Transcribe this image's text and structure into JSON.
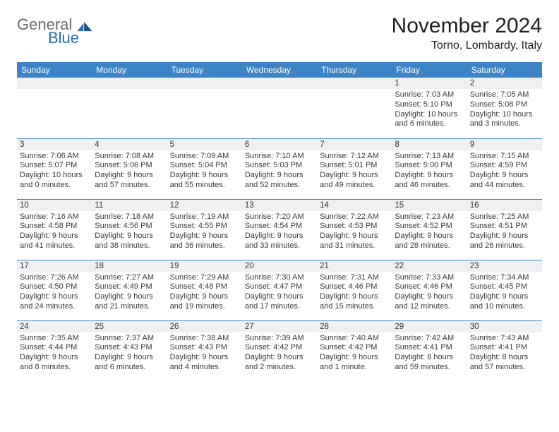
{
  "brand": {
    "general": "General",
    "blue": "Blue"
  },
  "title": "November 2024",
  "location": "Torno, Lombardy, Italy",
  "colors": {
    "header_bg": "#3d84c6",
    "gray_band": "#eef0f2",
    "rule": "#3d84c6",
    "brand_blue": "#2a6fb5",
    "brand_gray": "#6b6b6b"
  },
  "typography": {
    "title_fontsize": 30,
    "location_fontsize": 16,
    "dayhead_fontsize": 12,
    "cell_fontsize": 11
  },
  "days_of_week": [
    "Sunday",
    "Monday",
    "Tuesday",
    "Wednesday",
    "Thursday",
    "Friday",
    "Saturday"
  ],
  "weeks": [
    [
      null,
      null,
      null,
      null,
      null,
      {
        "n": "1",
        "sunrise": "Sunrise: 7:03 AM",
        "sunset": "Sunset: 5:10 PM",
        "d1": "Daylight: 10 hours",
        "d2": "and 6 minutes."
      },
      {
        "n": "2",
        "sunrise": "Sunrise: 7:05 AM",
        "sunset": "Sunset: 5:08 PM",
        "d1": "Daylight: 10 hours",
        "d2": "and 3 minutes."
      }
    ],
    [
      {
        "n": "3",
        "sunrise": "Sunrise: 7:06 AM",
        "sunset": "Sunset: 5:07 PM",
        "d1": "Daylight: 10 hours",
        "d2": "and 0 minutes."
      },
      {
        "n": "4",
        "sunrise": "Sunrise: 7:08 AM",
        "sunset": "Sunset: 5:06 PM",
        "d1": "Daylight: 9 hours",
        "d2": "and 57 minutes."
      },
      {
        "n": "5",
        "sunrise": "Sunrise: 7:09 AM",
        "sunset": "Sunset: 5:04 PM",
        "d1": "Daylight: 9 hours",
        "d2": "and 55 minutes."
      },
      {
        "n": "6",
        "sunrise": "Sunrise: 7:10 AM",
        "sunset": "Sunset: 5:03 PM",
        "d1": "Daylight: 9 hours",
        "d2": "and 52 minutes."
      },
      {
        "n": "7",
        "sunrise": "Sunrise: 7:12 AM",
        "sunset": "Sunset: 5:01 PM",
        "d1": "Daylight: 9 hours",
        "d2": "and 49 minutes."
      },
      {
        "n": "8",
        "sunrise": "Sunrise: 7:13 AM",
        "sunset": "Sunset: 5:00 PM",
        "d1": "Daylight: 9 hours",
        "d2": "and 46 minutes."
      },
      {
        "n": "9",
        "sunrise": "Sunrise: 7:15 AM",
        "sunset": "Sunset: 4:59 PM",
        "d1": "Daylight: 9 hours",
        "d2": "and 44 minutes."
      }
    ],
    [
      {
        "n": "10",
        "sunrise": "Sunrise: 7:16 AM",
        "sunset": "Sunset: 4:58 PM",
        "d1": "Daylight: 9 hours",
        "d2": "and 41 minutes."
      },
      {
        "n": "11",
        "sunrise": "Sunrise: 7:18 AM",
        "sunset": "Sunset: 4:56 PM",
        "d1": "Daylight: 9 hours",
        "d2": "and 38 minutes."
      },
      {
        "n": "12",
        "sunrise": "Sunrise: 7:19 AM",
        "sunset": "Sunset: 4:55 PM",
        "d1": "Daylight: 9 hours",
        "d2": "and 36 minutes."
      },
      {
        "n": "13",
        "sunrise": "Sunrise: 7:20 AM",
        "sunset": "Sunset: 4:54 PM",
        "d1": "Daylight: 9 hours",
        "d2": "and 33 minutes."
      },
      {
        "n": "14",
        "sunrise": "Sunrise: 7:22 AM",
        "sunset": "Sunset: 4:53 PM",
        "d1": "Daylight: 9 hours",
        "d2": "and 31 minutes."
      },
      {
        "n": "15",
        "sunrise": "Sunrise: 7:23 AM",
        "sunset": "Sunset: 4:52 PM",
        "d1": "Daylight: 9 hours",
        "d2": "and 28 minutes."
      },
      {
        "n": "16",
        "sunrise": "Sunrise: 7:25 AM",
        "sunset": "Sunset: 4:51 PM",
        "d1": "Daylight: 9 hours",
        "d2": "and 26 minutes."
      }
    ],
    [
      {
        "n": "17",
        "sunrise": "Sunrise: 7:26 AM",
        "sunset": "Sunset: 4:50 PM",
        "d1": "Daylight: 9 hours",
        "d2": "and 24 minutes."
      },
      {
        "n": "18",
        "sunrise": "Sunrise: 7:27 AM",
        "sunset": "Sunset: 4:49 PM",
        "d1": "Daylight: 9 hours",
        "d2": "and 21 minutes."
      },
      {
        "n": "19",
        "sunrise": "Sunrise: 7:29 AM",
        "sunset": "Sunset: 4:48 PM",
        "d1": "Daylight: 9 hours",
        "d2": "and 19 minutes."
      },
      {
        "n": "20",
        "sunrise": "Sunrise: 7:30 AM",
        "sunset": "Sunset: 4:47 PM",
        "d1": "Daylight: 9 hours",
        "d2": "and 17 minutes."
      },
      {
        "n": "21",
        "sunrise": "Sunrise: 7:31 AM",
        "sunset": "Sunset: 4:46 PM",
        "d1": "Daylight: 9 hours",
        "d2": "and 15 minutes."
      },
      {
        "n": "22",
        "sunrise": "Sunrise: 7:33 AM",
        "sunset": "Sunset: 4:46 PM",
        "d1": "Daylight: 9 hours",
        "d2": "and 12 minutes."
      },
      {
        "n": "23",
        "sunrise": "Sunrise: 7:34 AM",
        "sunset": "Sunset: 4:45 PM",
        "d1": "Daylight: 9 hours",
        "d2": "and 10 minutes."
      }
    ],
    [
      {
        "n": "24",
        "sunrise": "Sunrise: 7:35 AM",
        "sunset": "Sunset: 4:44 PM",
        "d1": "Daylight: 9 hours",
        "d2": "and 8 minutes."
      },
      {
        "n": "25",
        "sunrise": "Sunrise: 7:37 AM",
        "sunset": "Sunset: 4:43 PM",
        "d1": "Daylight: 9 hours",
        "d2": "and 6 minutes."
      },
      {
        "n": "26",
        "sunrise": "Sunrise: 7:38 AM",
        "sunset": "Sunset: 4:43 PM",
        "d1": "Daylight: 9 hours",
        "d2": "and 4 minutes."
      },
      {
        "n": "27",
        "sunrise": "Sunrise: 7:39 AM",
        "sunset": "Sunset: 4:42 PM",
        "d1": "Daylight: 9 hours",
        "d2": "and 2 minutes."
      },
      {
        "n": "28",
        "sunrise": "Sunrise: 7:40 AM",
        "sunset": "Sunset: 4:42 PM",
        "d1": "Daylight: 9 hours",
        "d2": "and 1 minute."
      },
      {
        "n": "29",
        "sunrise": "Sunrise: 7:42 AM",
        "sunset": "Sunset: 4:41 PM",
        "d1": "Daylight: 8 hours",
        "d2": "and 59 minutes."
      },
      {
        "n": "30",
        "sunrise": "Sunrise: 7:43 AM",
        "sunset": "Sunset: 4:41 PM",
        "d1": "Daylight: 8 hours",
        "d2": "and 57 minutes."
      }
    ]
  ]
}
